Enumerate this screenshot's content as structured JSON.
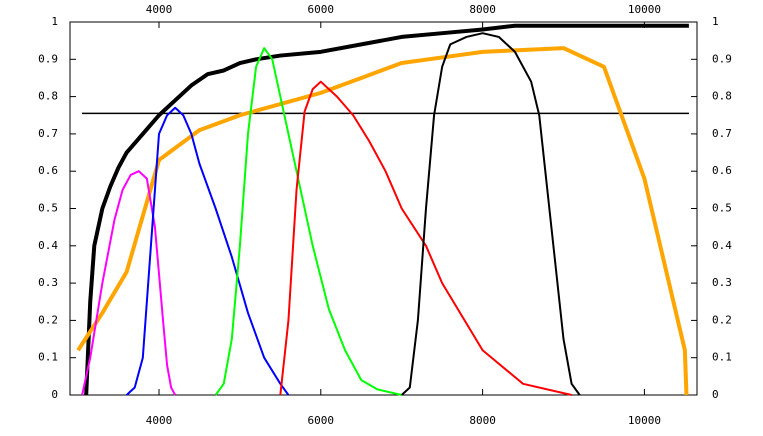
{
  "chart_data": {
    "type": "line",
    "xlim": [
      2900,
      10650
    ],
    "ylim": [
      0,
      1
    ],
    "xticks": [
      4000,
      6000,
      8000,
      10000
    ],
    "yticks": [
      0,
      0.1,
      0.2,
      0.3,
      0.4,
      0.5,
      0.6,
      0.7,
      0.8,
      0.9,
      1
    ],
    "hline": 0.755,
    "hline_color": "#000000",
    "series": [
      {
        "color": "#000000",
        "width": 4,
        "x": [
          3100,
          3150,
          3200,
          3300,
          3400,
          3500,
          3600,
          3800,
          4000,
          4200,
          4400,
          4600,
          4800,
          5000,
          5200,
          5500,
          6000,
          6500,
          7000,
          7500,
          8000,
          8400,
          9000,
          10000,
          10550
        ],
        "values": [
          0,
          0.25,
          0.4,
          0.5,
          0.56,
          0.61,
          0.65,
          0.7,
          0.75,
          0.79,
          0.83,
          0.86,
          0.87,
          0.89,
          0.9,
          0.91,
          0.92,
          0.94,
          0.96,
          0.97,
          0.98,
          0.99,
          0.99,
          0.99,
          0.99
        ]
      },
      {
        "color": "#ffa500",
        "width": 4,
        "x": [
          3000,
          3300,
          3600,
          4000,
          4500,
          5000,
          5500,
          6000,
          6500,
          7000,
          7500,
          8000,
          8500,
          9000,
          9500,
          10000,
          10500,
          10520
        ],
        "values": [
          0.12,
          0.22,
          0.33,
          0.63,
          0.71,
          0.75,
          0.78,
          0.81,
          0.85,
          0.89,
          0.905,
          0.92,
          0.925,
          0.93,
          0.88,
          0.58,
          0.12,
          0
        ]
      },
      {
        "color": "#ff00ff",
        "width": 2,
        "x": [
          3050,
          3150,
          3300,
          3450,
          3550,
          3650,
          3750,
          3850,
          3950,
          4050,
          4100,
          4150,
          4200
        ],
        "values": [
          0,
          0.1,
          0.3,
          0.47,
          0.55,
          0.59,
          0.6,
          0.58,
          0.45,
          0.2,
          0.08,
          0.02,
          0
        ]
      },
      {
        "color": "#0000ff",
        "width": 2,
        "x": [
          3600,
          3700,
          3800,
          3900,
          4000,
          4100,
          4200,
          4300,
          4400,
          4500,
          4700,
          4900,
          5100,
          5300,
          5500,
          5600
        ],
        "values": [
          0,
          0.02,
          0.1,
          0.4,
          0.7,
          0.75,
          0.77,
          0.75,
          0.7,
          0.62,
          0.5,
          0.37,
          0.22,
          0.1,
          0.03,
          0
        ]
      },
      {
        "color": "#00ff00",
        "width": 2,
        "x": [
          4700,
          4800,
          4900,
          5000,
          5100,
          5200,
          5300,
          5400,
          5500,
          5700,
          5900,
          6100,
          6300,
          6500,
          6700,
          6900,
          7000
        ],
        "values": [
          0,
          0.03,
          0.15,
          0.4,
          0.7,
          0.88,
          0.93,
          0.9,
          0.8,
          0.6,
          0.4,
          0.23,
          0.12,
          0.04,
          0.015,
          0.005,
          0
        ]
      },
      {
        "color": "#ff0000",
        "width": 2,
        "x": [
          5500,
          5600,
          5700,
          5800,
          5900,
          6000,
          6200,
          6400,
          6600,
          6800,
          7000,
          7300,
          7500,
          8000,
          8500,
          9000,
          9100
        ],
        "values": [
          0,
          0.2,
          0.55,
          0.76,
          0.82,
          0.84,
          0.8,
          0.75,
          0.68,
          0.6,
          0.5,
          0.4,
          0.3,
          0.12,
          0.03,
          0.005,
          0
        ]
      },
      {
        "color": "#000000",
        "width": 2,
        "x": [
          7000,
          7100,
          7200,
          7300,
          7400,
          7500,
          7600,
          7800,
          8000,
          8200,
          8400,
          8600,
          8700,
          8800,
          8900,
          9000,
          9100,
          9200
        ],
        "values": [
          0,
          0.02,
          0.2,
          0.5,
          0.75,
          0.88,
          0.94,
          0.96,
          0.97,
          0.96,
          0.92,
          0.84,
          0.75,
          0.55,
          0.35,
          0.15,
          0.03,
          0
        ]
      }
    ]
  }
}
